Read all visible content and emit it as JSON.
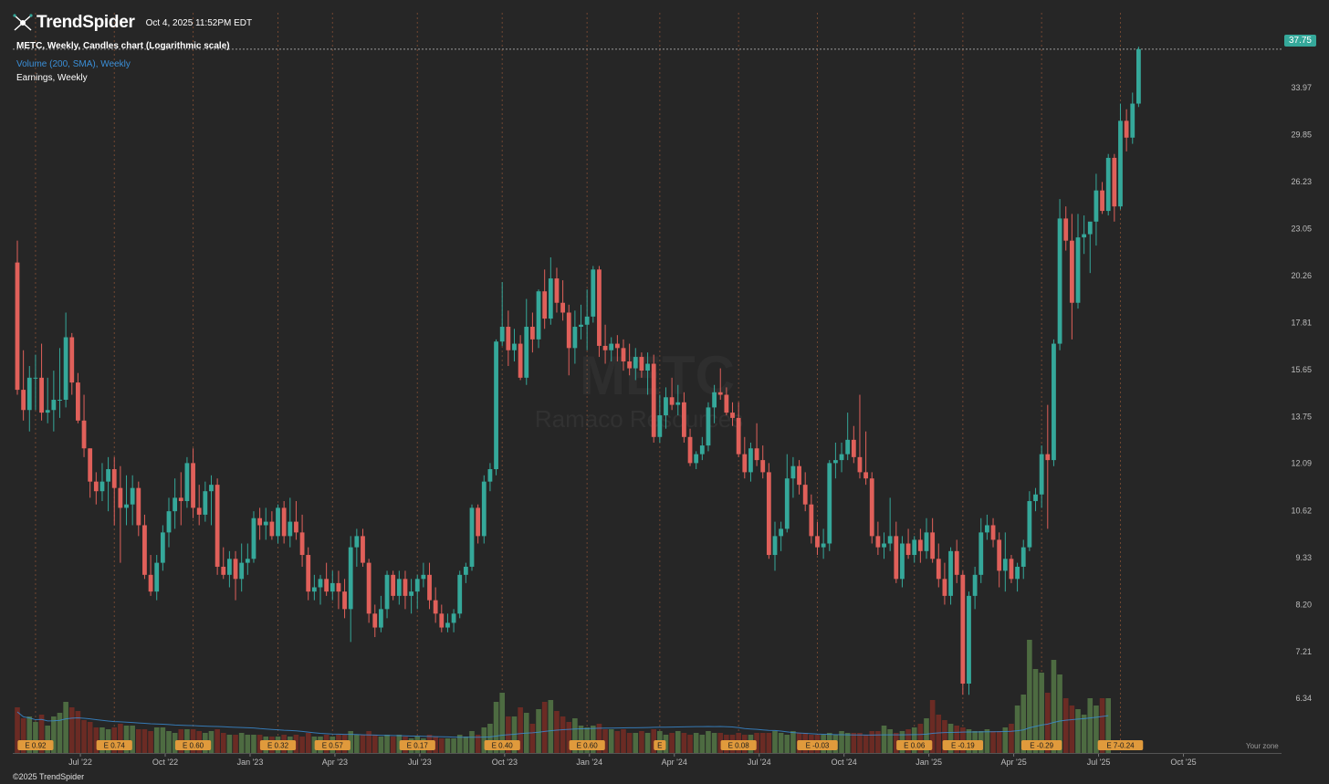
{
  "header": {
    "brand": "TrendSpider",
    "timestamp": "Oct 4, 2025 11:52PM EDT",
    "chart_title": "METC, Weekly, Candles chart (Logarithmic scale)",
    "volume_label": "Volume (200, SMA), Weekly",
    "earnings_label": "Earnings, Weekly",
    "watermark_ticker": "METC",
    "watermark_name": "Ramaco Resources"
  },
  "footer": {
    "copyright": "©2025 TrendSpider"
  },
  "last_price": "37.75",
  "timezone_label": "Your zone",
  "colors": {
    "background": "#262626",
    "up": "#35a89a",
    "down": "#e0605a",
    "vol_up": "#4d6b41",
    "vol_down": "#6b2b24",
    "earnings_bg": "#e09a3c",
    "earnings_text": "#1c1c1c",
    "grid_line": "#7a4a32",
    "sma": "#3a8fd8"
  },
  "chart_data": {
    "type": "candlestick",
    "symbol": "METC",
    "timeframe": "Weekly",
    "scale": "log",
    "ylim": [
      6.0,
      38.5
    ],
    "y_ticks": [
      "37.75",
      "33.97",
      "29.85",
      "26.23",
      "23.05",
      "20.26",
      "17.81",
      "15.65",
      "13.75",
      "12.09",
      "10.62",
      "9.33",
      "8.20",
      "7.21",
      "6.34"
    ],
    "x_ticks": [
      "Jul '22",
      "Oct '22",
      "Jan '23",
      "Apr '23",
      "Jul '23",
      "Oct '23",
      "Jan '24",
      "Apr '24",
      "Jul '24",
      "Oct '24",
      "Jan '25",
      "Apr '25",
      "Jul '25",
      "Oct '25"
    ],
    "earnings": [
      {
        "label": "E 0.92",
        "week": 3
      },
      {
        "label": "E 0.74",
        "week": 16
      },
      {
        "label": "E 0.60",
        "week": 29
      },
      {
        "label": "E 0.32",
        "week": 43
      },
      {
        "label": "E 0.57",
        "week": 52
      },
      {
        "label": "E 0.17",
        "week": 66
      },
      {
        "label": "E 0.40",
        "week": 80
      },
      {
        "label": "E 0.60",
        "week": 94
      },
      {
        "label": "E",
        "week": 106
      },
      {
        "label": "E 0.08",
        "week": 119
      },
      {
        "label": "E -0.03",
        "week": 132
      },
      {
        "label": "E 0.06",
        "week": 148
      },
      {
        "label": "E -0.19",
        "week": 156
      },
      {
        "label": "E -0.29",
        "week": 169
      },
      {
        "label": "E 7-0.24",
        "week": 182
      }
    ],
    "ohlc": [
      [
        21.0,
        22.3,
        14.6,
        14.8
      ],
      [
        14.8,
        16.5,
        13.6,
        14.0
      ],
      [
        14.0,
        15.8,
        13.2,
        15.3
      ],
      [
        15.3,
        16.3,
        14.0,
        15.3
      ],
      [
        15.3,
        16.8,
        13.6,
        13.9
      ],
      [
        13.9,
        15.3,
        13.5,
        14.0
      ],
      [
        14.0,
        15.6,
        13.2,
        14.4
      ],
      [
        14.4,
        16.6,
        13.7,
        14.4
      ],
      [
        14.4,
        18.3,
        14.1,
        17.1
      ],
      [
        17.1,
        17.3,
        14.6,
        15.1
      ],
      [
        15.1,
        15.5,
        13.5,
        13.6
      ],
      [
        13.6,
        14.6,
        12.3,
        12.6
      ],
      [
        12.6,
        12.6,
        11.0,
        11.5
      ],
      [
        11.5,
        11.8,
        10.8,
        11.2
      ],
      [
        11.2,
        12.1,
        10.9,
        11.5
      ],
      [
        11.5,
        12.3,
        10.6,
        11.9
      ],
      [
        11.9,
        12.3,
        10.2,
        11.3
      ],
      [
        11.3,
        12.0,
        9.2,
        10.7
      ],
      [
        10.7,
        11.7,
        10.2,
        10.8
      ],
      [
        10.8,
        11.7,
        10.2,
        11.3
      ],
      [
        11.3,
        11.5,
        9.9,
        10.2
      ],
      [
        10.2,
        10.5,
        8.8,
        8.9
      ],
      [
        8.9,
        9.4,
        8.4,
        8.5
      ],
      [
        8.5,
        9.4,
        8.3,
        9.2
      ],
      [
        9.2,
        10.2,
        9.0,
        10.0
      ],
      [
        10.0,
        11.0,
        9.6,
        10.6
      ],
      [
        10.6,
        11.6,
        10.1,
        11.0
      ],
      [
        11.0,
        11.8,
        10.2,
        10.9
      ],
      [
        10.9,
        12.3,
        10.7,
        12.1
      ],
      [
        12.1,
        12.6,
        10.4,
        10.7
      ],
      [
        10.7,
        11.4,
        10.2,
        10.5
      ],
      [
        10.5,
        11.5,
        10.3,
        11.2
      ],
      [
        11.2,
        11.7,
        10.2,
        11.4
      ],
      [
        11.4,
        11.6,
        8.9,
        9.1
      ],
      [
        9.1,
        9.6,
        8.8,
        8.9
      ],
      [
        8.9,
        9.5,
        8.6,
        9.3
      ],
      [
        9.3,
        9.5,
        8.3,
        8.8
      ],
      [
        8.8,
        9.7,
        8.5,
        9.2
      ],
      [
        9.2,
        9.7,
        8.9,
        9.3
      ],
      [
        9.3,
        10.6,
        9.2,
        10.4
      ],
      [
        10.4,
        10.7,
        9.8,
        10.2
      ],
      [
        10.2,
        10.7,
        9.8,
        10.3
      ],
      [
        10.3,
        10.6,
        9.8,
        9.9
      ],
      [
        9.9,
        10.8,
        9.7,
        10.7
      ],
      [
        10.7,
        10.9,
        9.7,
        9.9
      ],
      [
        9.9,
        11.0,
        9.6,
        10.3
      ],
      [
        10.3,
        10.9,
        9.8,
        10.0
      ],
      [
        10.0,
        10.5,
        9.1,
        9.4
      ],
      [
        9.4,
        9.6,
        8.3,
        8.5
      ],
      [
        8.5,
        8.9,
        8.3,
        8.6
      ],
      [
        8.6,
        8.9,
        8.2,
        8.8
      ],
      [
        8.8,
        9.2,
        8.4,
        8.5
      ],
      [
        8.5,
        9.0,
        8.3,
        8.7
      ],
      [
        8.7,
        9.0,
        8.1,
        8.5
      ],
      [
        8.5,
        8.8,
        7.9,
        8.1
      ],
      [
        8.1,
        9.9,
        7.4,
        9.6
      ],
      [
        9.6,
        10.1,
        9.1,
        9.9
      ],
      [
        9.9,
        10.1,
        9.1,
        9.2
      ],
      [
        9.2,
        9.3,
        7.8,
        8.0
      ],
      [
        8.0,
        8.2,
        7.5,
        7.7
      ],
      [
        7.7,
        8.4,
        7.6,
        8.1
      ],
      [
        8.1,
        9.0,
        7.9,
        8.9
      ],
      [
        8.9,
        9.0,
        8.3,
        8.4
      ],
      [
        8.4,
        9.0,
        8.2,
        8.8
      ],
      [
        8.8,
        9.0,
        8.1,
        8.4
      ],
      [
        8.4,
        8.8,
        8.0,
        8.5
      ],
      [
        8.5,
        8.9,
        8.1,
        8.8
      ],
      [
        8.8,
        9.2,
        8.6,
        8.9
      ],
      [
        8.9,
        9.2,
        8.1,
        8.3
      ],
      [
        8.3,
        8.6,
        7.8,
        8.0
      ],
      [
        8.0,
        8.2,
        7.6,
        7.7
      ],
      [
        7.7,
        8.0,
        7.6,
        7.8
      ],
      [
        7.8,
        8.1,
        7.6,
        8.0
      ],
      [
        8.0,
        9.0,
        7.9,
        8.9
      ],
      [
        8.9,
        9.2,
        8.7,
        9.1
      ],
      [
        9.1,
        10.8,
        9.0,
        10.7
      ],
      [
        10.7,
        10.8,
        9.7,
        9.9
      ],
      [
        9.9,
        11.7,
        9.7,
        11.5
      ],
      [
        11.5,
        12.1,
        11.2,
        11.9
      ],
      [
        11.9,
        17.0,
        11.7,
        16.9
      ],
      [
        16.9,
        19.9,
        16.7,
        17.6
      ],
      [
        17.6,
        18.4,
        15.8,
        16.5
      ],
      [
        16.5,
        17.5,
        16.0,
        16.8
      ],
      [
        16.8,
        17.2,
        15.2,
        15.3
      ],
      [
        15.3,
        19.0,
        15.0,
        17.6
      ],
      [
        17.6,
        18.3,
        16.4,
        17.0
      ],
      [
        17.0,
        19.5,
        16.6,
        19.4
      ],
      [
        19.4,
        20.6,
        17.5,
        18.0
      ],
      [
        18.0,
        21.3,
        17.7,
        20.1
      ],
      [
        20.1,
        20.7,
        18.3,
        18.8
      ],
      [
        18.8,
        20.0,
        17.9,
        18.3
      ],
      [
        18.3,
        18.7,
        15.4,
        16.6
      ],
      [
        16.6,
        18.4,
        15.9,
        17.6
      ],
      [
        17.6,
        18.7,
        17.0,
        17.7
      ],
      [
        17.7,
        19.5,
        16.5,
        18.1
      ],
      [
        18.1,
        20.8,
        17.8,
        20.6
      ],
      [
        20.6,
        20.8,
        16.2,
        16.7
      ],
      [
        16.7,
        17.7,
        15.9,
        16.5
      ],
      [
        16.5,
        17.1,
        16.0,
        16.8
      ],
      [
        16.8,
        17.2,
        16.0,
        16.6
      ],
      [
        16.6,
        17.0,
        15.6,
        16.0
      ],
      [
        16.0,
        16.8,
        15.4,
        15.7
      ],
      [
        15.7,
        16.6,
        15.2,
        16.2
      ],
      [
        16.2,
        16.4,
        15.3,
        15.6
      ],
      [
        15.6,
        16.4,
        14.6,
        15.9
      ],
      [
        15.9,
        16.3,
        12.8,
        13.0
      ],
      [
        13.0,
        14.6,
        12.8,
        13.8
      ],
      [
        13.8,
        14.9,
        13.3,
        14.5
      ],
      [
        14.5,
        15.3,
        14.0,
        14.2
      ],
      [
        14.2,
        15.0,
        13.8,
        14.3
      ],
      [
        14.3,
        14.7,
        12.8,
        13.0
      ],
      [
        13.0,
        13.3,
        12.0,
        12.1
      ],
      [
        12.1,
        12.5,
        11.9,
        12.4
      ],
      [
        12.4,
        13.0,
        12.2,
        12.7
      ],
      [
        12.7,
        14.3,
        12.5,
        14.1
      ],
      [
        14.1,
        15.0,
        13.5,
        14.7
      ],
      [
        14.7,
        15.7,
        14.4,
        14.6
      ],
      [
        14.6,
        14.9,
        13.8,
        13.9
      ],
      [
        13.9,
        14.3,
        13.4,
        13.7
      ],
      [
        13.7,
        14.3,
        12.3,
        12.4
      ],
      [
        12.4,
        13.0,
        11.6,
        11.8
      ],
      [
        11.8,
        12.8,
        11.5,
        12.6
      ],
      [
        12.6,
        13.5,
        12.0,
        12.2
      ],
      [
        12.2,
        12.7,
        11.6,
        11.8
      ],
      [
        11.8,
        12.1,
        9.3,
        9.4
      ],
      [
        9.4,
        10.3,
        9.0,
        9.9
      ],
      [
        9.9,
        10.3,
        9.5,
        10.1
      ],
      [
        10.1,
        12.4,
        10.0,
        11.6
      ],
      [
        11.6,
        12.3,
        11.0,
        12.0
      ],
      [
        12.0,
        12.2,
        11.1,
        11.4
      ],
      [
        11.4,
        11.8,
        10.6,
        10.8
      ],
      [
        10.8,
        11.1,
        9.7,
        9.9
      ],
      [
        9.9,
        10.3,
        9.4,
        9.6
      ],
      [
        9.6,
        10.1,
        9.3,
        9.7
      ],
      [
        9.7,
        12.2,
        9.5,
        12.1
      ],
      [
        12.1,
        12.8,
        11.6,
        12.2
      ],
      [
        12.2,
        12.8,
        11.8,
        12.4
      ],
      [
        12.4,
        13.9,
        12.2,
        12.9
      ],
      [
        12.9,
        13.4,
        12.1,
        12.3
      ],
      [
        12.3,
        14.6,
        11.6,
        11.8
      ],
      [
        11.8,
        13.2,
        11.4,
        11.6
      ],
      [
        11.6,
        11.8,
        9.7,
        9.9
      ],
      [
        9.9,
        10.3,
        9.4,
        9.6
      ],
      [
        9.6,
        10.0,
        9.3,
        9.7
      ],
      [
        9.7,
        11.0,
        9.5,
        9.9
      ],
      [
        9.9,
        10.3,
        8.7,
        8.8
      ],
      [
        8.8,
        9.9,
        8.6,
        9.7
      ],
      [
        9.7,
        10.1,
        9.3,
        9.4
      ],
      [
        9.4,
        9.9,
        9.2,
        9.8
      ],
      [
        9.8,
        10.1,
        9.2,
        9.5
      ],
      [
        9.5,
        10.4,
        9.3,
        10.0
      ],
      [
        10.0,
        10.4,
        9.2,
        9.3
      ],
      [
        9.3,
        9.7,
        8.6,
        8.8
      ],
      [
        8.8,
        9.2,
        8.2,
        8.4
      ],
      [
        8.4,
        9.6,
        8.2,
        9.5
      ],
      [
        9.5,
        9.8,
        8.7,
        8.9
      ],
      [
        8.9,
        9.0,
        6.4,
        6.6
      ],
      [
        6.6,
        8.5,
        6.4,
        8.4
      ],
      [
        8.4,
        9.1,
        8.1,
        8.9
      ],
      [
        8.9,
        10.4,
        8.7,
        10.0
      ],
      [
        10.0,
        10.5,
        9.8,
        10.2
      ],
      [
        10.2,
        10.4,
        9.6,
        9.8
      ],
      [
        9.8,
        10.0,
        8.6,
        9.0
      ],
      [
        9.0,
        10.0,
        8.5,
        9.3
      ],
      [
        9.3,
        9.4,
        8.7,
        8.8
      ],
      [
        8.8,
        9.2,
        8.5,
        9.1
      ],
      [
        9.1,
        9.8,
        8.8,
        9.6
      ],
      [
        9.6,
        11.2,
        9.5,
        10.9
      ],
      [
        10.9,
        11.3,
        10.6,
        11.1
      ],
      [
        11.1,
        12.7,
        10.7,
        12.4
      ],
      [
        12.4,
        14.2,
        10.1,
        12.2
      ],
      [
        12.2,
        17.0,
        12.0,
        16.8
      ],
      [
        16.8,
        25.0,
        16.5,
        23.7
      ],
      [
        23.7,
        24.5,
        21.7,
        22.3
      ],
      [
        22.3,
        24.0,
        17.0,
        18.8
      ],
      [
        18.8,
        24.0,
        18.5,
        22.5
      ],
      [
        22.5,
        23.9,
        21.5,
        22.7
      ],
      [
        22.7,
        23.4,
        20.4,
        23.5
      ],
      [
        23.5,
        26.8,
        22.0,
        25.6
      ],
      [
        25.6,
        26.2,
        24.0,
        24.2
      ],
      [
        24.2,
        28.3,
        23.9,
        28.0
      ],
      [
        28.0,
        28.3,
        23.5,
        24.5
      ],
      [
        24.5,
        32.5,
        24.3,
        31.0
      ],
      [
        31.0,
        32.0,
        28.5,
        29.6
      ],
      [
        29.6,
        33.5,
        29.1,
        32.5
      ],
      [
        32.5,
        38.0,
        32.2,
        37.75
      ]
    ],
    "volume": [
      2.5,
      1.9,
      2.0,
      1.7,
      2.1,
      1.5,
      2.0,
      2.2,
      2.8,
      2.5,
      2.3,
      1.8,
      1.7,
      1.4,
      1.4,
      1.3,
      1.4,
      1.6,
      1.5,
      1.5,
      1.3,
      1.3,
      1.2,
      1.4,
      1.4,
      1.2,
      1.1,
      1.3,
      1.3,
      1.3,
      1.2,
      1.1,
      1.2,
      1.3,
      1.1,
      1.0,
      1.0,
      1.1,
      1.0,
      1.0,
      1.0,
      0.9,
      0.9,
      0.9,
      1.0,
      0.9,
      1.0,
      0.9,
      1.1,
      0.9,
      0.9,
      1.0,
      0.9,
      1.0,
      1.0,
      1.2,
      1.0,
      1.0,
      1.2,
      1.0,
      0.9,
      1.0,
      0.9,
      1.0,
      0.9,
      0.8,
      0.9,
      0.8,
      1.0,
      0.9,
      0.8,
      0.8,
      0.8,
      1.0,
      0.9,
      1.2,
      1.0,
      1.4,
      1.6,
      2.8,
      3.3,
      2.0,
      2.0,
      2.5,
      2.2,
      1.6,
      2.4,
      2.8,
      2.9,
      2.3,
      2.0,
      1.7,
      1.9,
      1.5,
      1.4,
      1.5,
      1.6,
      1.3,
      1.3,
      1.2,
      1.3,
      1.1,
      1.1,
      1.2,
      1.1,
      1.3,
      1.2,
      1.0,
      1.1,
      1.2,
      1.1,
      1.0,
      1.1,
      1.0,
      1.2,
      1.1,
      1.1,
      1.0,
      1.0,
      1.1,
      1.0,
      1.0,
      1.1,
      1.1,
      1.1,
      1.2,
      1.1,
      1.0,
      1.2,
      1.1,
      1.1,
      1.0,
      1.0,
      1.0,
      1.1,
      1.0,
      1.2,
      1.1,
      1.1,
      1.1,
      1.0,
      1.2,
      1.2,
      1.5,
      1.3,
      1.1,
      1.2,
      1.3,
      1.4,
      1.6,
      1.9,
      2.9,
      2.1,
      1.8,
      1.6,
      1.5,
      1.4,
      1.3,
      1.2,
      1.2,
      1.3,
      1.2,
      1.2,
      1.4,
      1.6,
      2.6,
      3.2,
      6.2,
      4.6,
      4.4,
      3.3,
      5.1,
      4.3,
      3.0,
      2.6,
      2.4,
      2.1,
      3.0,
      2.6,
      3.0,
      3.0
    ],
    "volume_unit": "millions (relative)"
  }
}
